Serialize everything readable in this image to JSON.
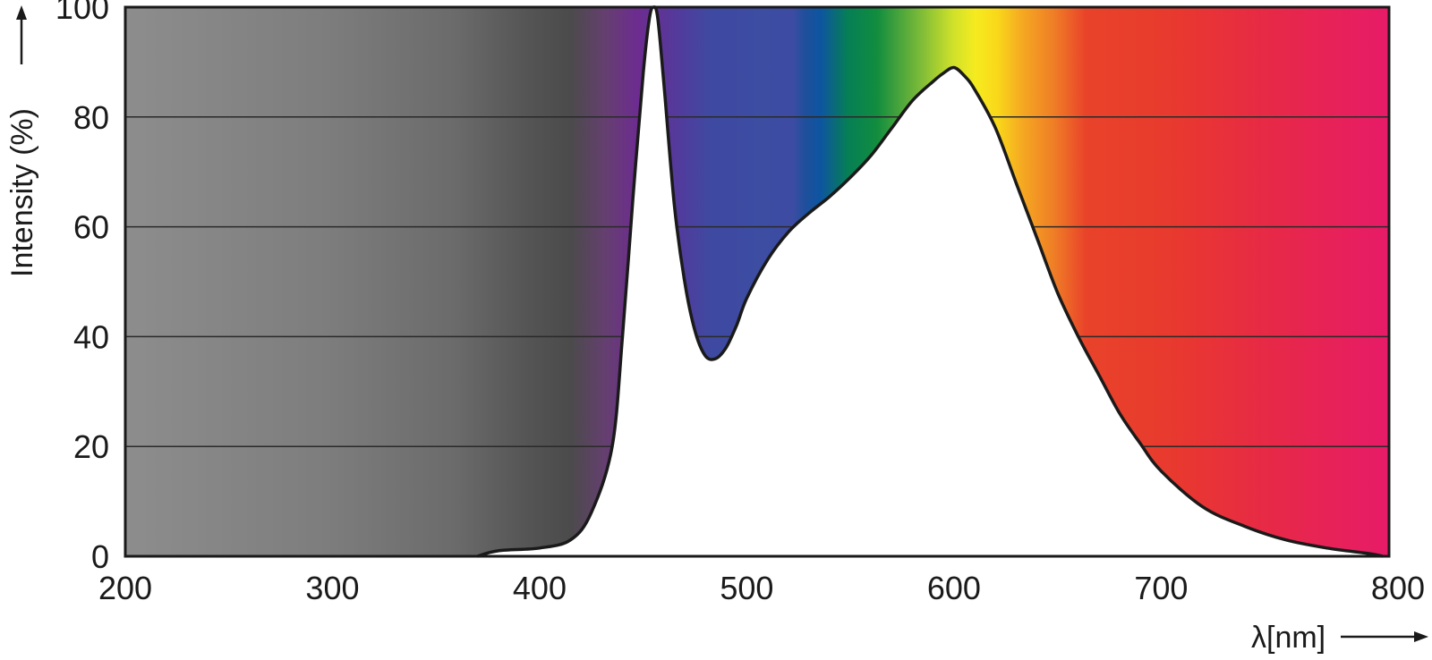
{
  "chart_data": {
    "type": "area",
    "title": "",
    "xlabel": "λ[nm]",
    "ylabel": "Intensity (%)",
    "xlim": [
      200,
      810
    ],
    "ylim": [
      0,
      100
    ],
    "x_ticks": [
      200,
      300,
      400,
      500,
      600,
      700,
      800
    ],
    "y_ticks": [
      0,
      20,
      40,
      60,
      80,
      100
    ],
    "grid": "horizontal",
    "background": "visible spectrum color band (gray in UV region)",
    "series": [
      {
        "x": [
          370,
          380,
          400,
          415,
          425,
          435,
          440,
          445,
          450,
          453,
          455,
          457,
          460,
          465,
          470,
          475,
          480,
          485,
          490,
          495,
          500,
          510,
          520,
          530,
          540,
          550,
          560,
          570,
          580,
          590,
          595,
          600,
          605,
          610,
          620,
          630,
          640,
          650,
          660,
          670,
          680,
          690,
          700,
          720,
          740,
          760,
          780,
          800,
          807
        ],
        "y": [
          0,
          1,
          1.5,
          3,
          8,
          20,
          40,
          65,
          88,
          98,
          100,
          98,
          86,
          64,
          50,
          41,
          36.5,
          36,
          38,
          42,
          47,
          54,
          59,
          62.5,
          65.5,
          69,
          73,
          78,
          83,
          86.5,
          88,
          89,
          87.5,
          85,
          78,
          68,
          58,
          48,
          40,
          33,
          26,
          20.5,
          15.5,
          9,
          5.5,
          3,
          1.5,
          0.5,
          0
        ]
      }
    ]
  }
}
